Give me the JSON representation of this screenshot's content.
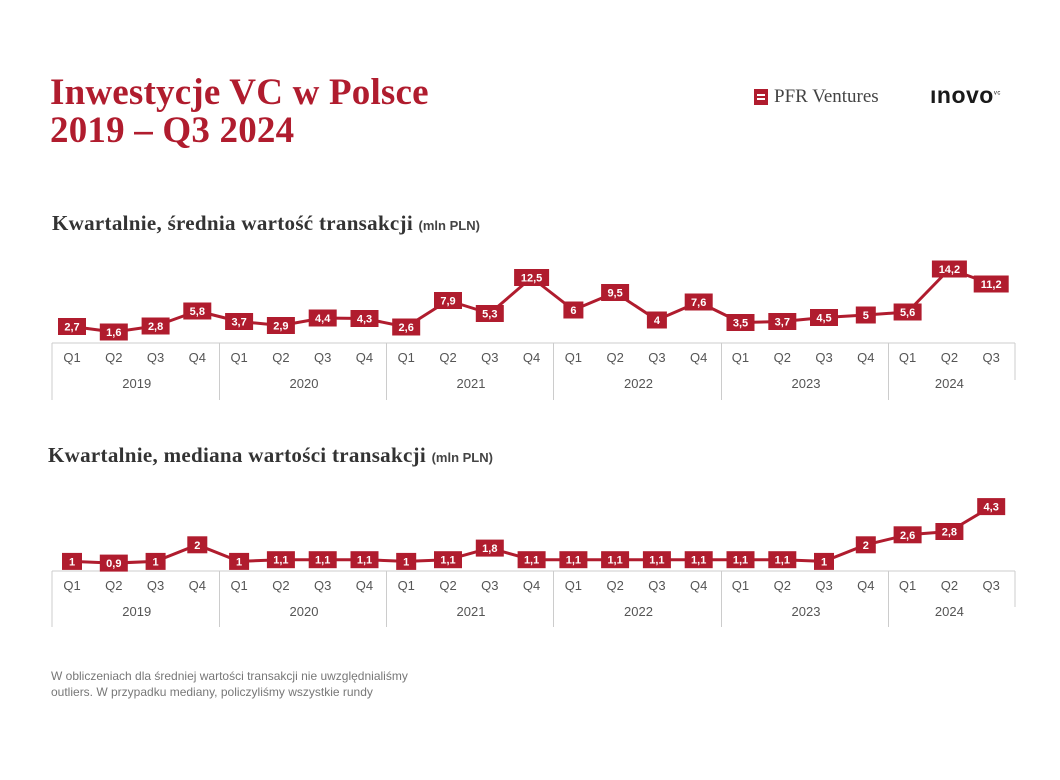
{
  "title": {
    "line1": "Inwestycje VC w Polsce",
    "line2": "2019 – Q3 2024"
  },
  "logos": {
    "pfr": "PFR Ventures",
    "inovo": "ınovo",
    "inovo_mark": "vc"
  },
  "colors": {
    "accent": "#b01c2e",
    "axis": "#cccccc",
    "text": "#555555"
  },
  "charts": [
    {
      "title": "Kwartalnie, średnia wartość transakcji",
      "unit": "(mln PLN)"
    },
    {
      "title": "Kwartalnie, mediana wartości transakcji",
      "unit": "(mln PLN)"
    }
  ],
  "chart_data": [
    {
      "type": "line",
      "title": "Kwartalnie, średnia wartość transakcji",
      "unit": "(mln PLN)",
      "years": [
        "2019",
        "2020",
        "2021",
        "2022",
        "2023",
        "2024"
      ],
      "quarters": [
        "Q1",
        "Q2",
        "Q3",
        "Q4",
        "Q1",
        "Q2",
        "Q3",
        "Q4",
        "Q1",
        "Q2",
        "Q3",
        "Q4",
        "Q1",
        "Q2",
        "Q3",
        "Q4",
        "Q1",
        "Q2",
        "Q3",
        "Q4",
        "Q1",
        "Q2",
        "Q3"
      ],
      "values": [
        2.7,
        1.6,
        2.8,
        5.8,
        3.7,
        2.9,
        4.4,
        4.3,
        2.6,
        7.9,
        5.3,
        12.5,
        6,
        9.5,
        4,
        7.6,
        3.5,
        3.7,
        4.5,
        5,
        5.6,
        14.2,
        11.2
      ],
      "labels": [
        "2,7",
        "1,6",
        "2,8",
        "5,8",
        "3,7",
        "2,9",
        "4,4",
        "4,3",
        "2,6",
        "7,9",
        "5,3",
        "12,5",
        "6",
        "9,5",
        "4",
        "7,6",
        "3,5",
        "3,7",
        "4,5",
        "5",
        "5,6",
        "14,2",
        "11,2"
      ],
      "grid": false
    },
    {
      "type": "line",
      "title": "Kwartalnie, mediana wartości transakcji",
      "unit": "(mln PLN)",
      "years": [
        "2019",
        "2020",
        "2021",
        "2022",
        "2023",
        "2024"
      ],
      "quarters": [
        "Q1",
        "Q2",
        "Q3",
        "Q4",
        "Q1",
        "Q2",
        "Q3",
        "Q4",
        "Q1",
        "Q2",
        "Q3",
        "Q4",
        "Q1",
        "Q2",
        "Q3",
        "Q4",
        "Q1",
        "Q2",
        "Q3",
        "Q4",
        "Q1",
        "Q2",
        "Q3"
      ],
      "values": [
        1,
        0.9,
        1,
        2,
        1,
        1.1,
        1.1,
        1.1,
        1,
        1.1,
        1.8,
        1.1,
        1.1,
        1.1,
        1.1,
        1.1,
        1.1,
        1.1,
        1,
        2,
        2.6,
        2.8,
        4.3
      ],
      "labels": [
        "1",
        "0,9",
        "1",
        "2",
        "1",
        "1,1",
        "1,1",
        "1,1",
        "1",
        "1,1",
        "1,8",
        "1,1",
        "1,1",
        "1,1",
        "1,1",
        "1,1",
        "1,1",
        "1,1",
        "1",
        "2",
        "2,6",
        "2,8",
        "4,3"
      ],
      "grid": false
    }
  ],
  "footnote": {
    "line1": "W obliczeniach dla średniej wartości transakcji nie uwzględnialiśmy",
    "line2": "outliers. W przypadku mediany, policzyliśmy wszystkie rundy"
  }
}
